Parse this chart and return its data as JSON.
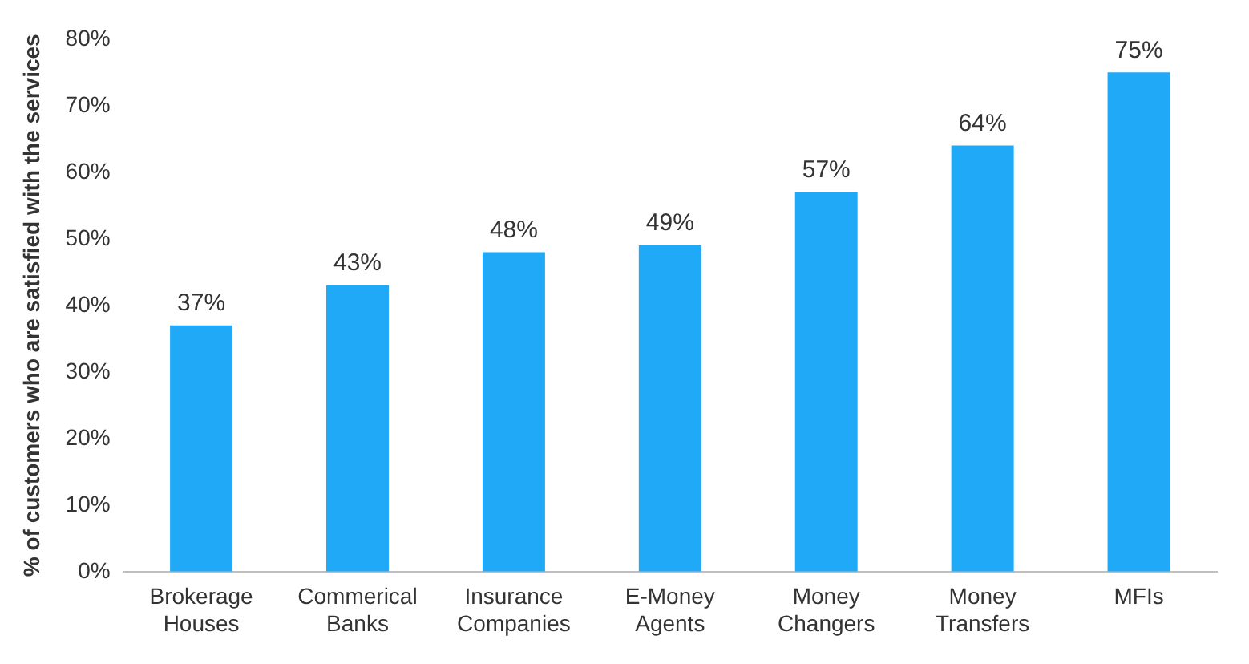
{
  "chart_data": {
    "type": "bar",
    "ylabel": "% of customers who are satisfied with the services",
    "categories": [
      "Brokerage Houses",
      "Commerical Banks",
      "Insurance Companies",
      "E-Money Agents",
      "Money Changers",
      "Money Transfers",
      "MFIs"
    ],
    "values": [
      37,
      43,
      48,
      49,
      57,
      64,
      75
    ],
    "value_labels": [
      "37%",
      "43%",
      "48%",
      "49%",
      "57%",
      "64%",
      "75%"
    ],
    "color": "#1fa9f7",
    "ylim": [
      0,
      80
    ],
    "yticks": [
      {
        "value": 0,
        "label": "0%"
      },
      {
        "value": 10,
        "label": "10%"
      },
      {
        "value": 20,
        "label": "20%"
      },
      {
        "value": 30,
        "label": "30%"
      },
      {
        "value": 40,
        "label": "40%"
      },
      {
        "value": 50,
        "label": "50%"
      },
      {
        "value": 60,
        "label": "60%"
      },
      {
        "value": 70,
        "label": "70%"
      },
      {
        "value": 80,
        "label": "80%"
      }
    ],
    "grid": false,
    "legend": false
  }
}
